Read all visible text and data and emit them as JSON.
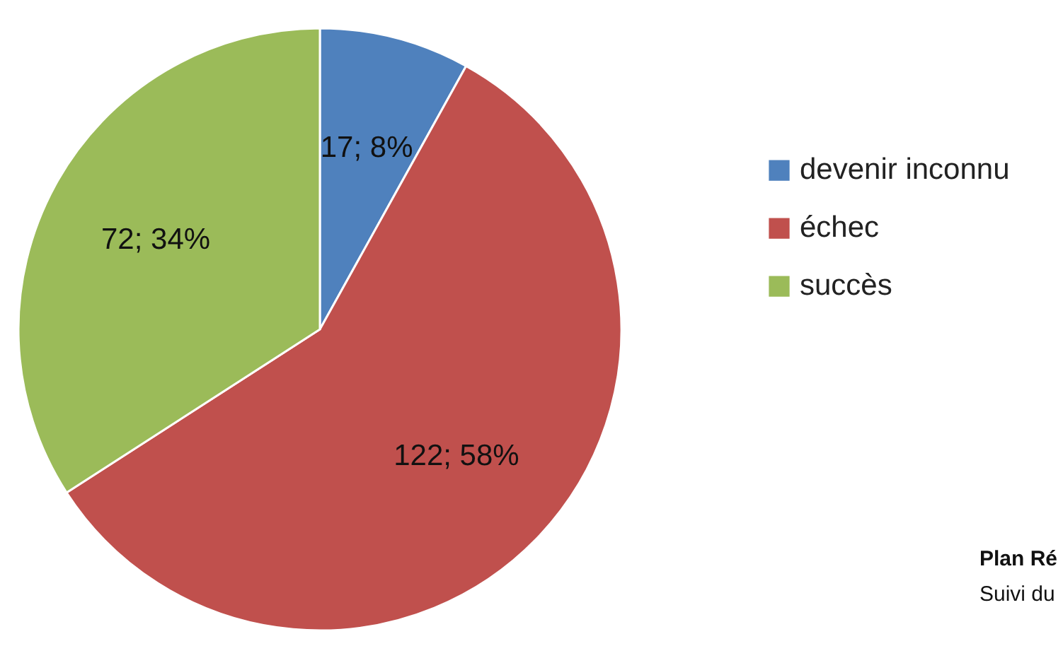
{
  "chart_data": {
    "type": "pie",
    "categories": [
      "devenir inconnu",
      "échec",
      "succès"
    ],
    "values": [
      17,
      122,
      72
    ],
    "colors": [
      "#4f81bd",
      "#c0504d",
      "#9bbb59"
    ],
    "value_labels": [
      "17; 8%",
      "122; 58%",
      "72; 34%"
    ],
    "legend": "right",
    "annotations": [
      "Plan Ré",
      "Suivi du"
    ]
  }
}
